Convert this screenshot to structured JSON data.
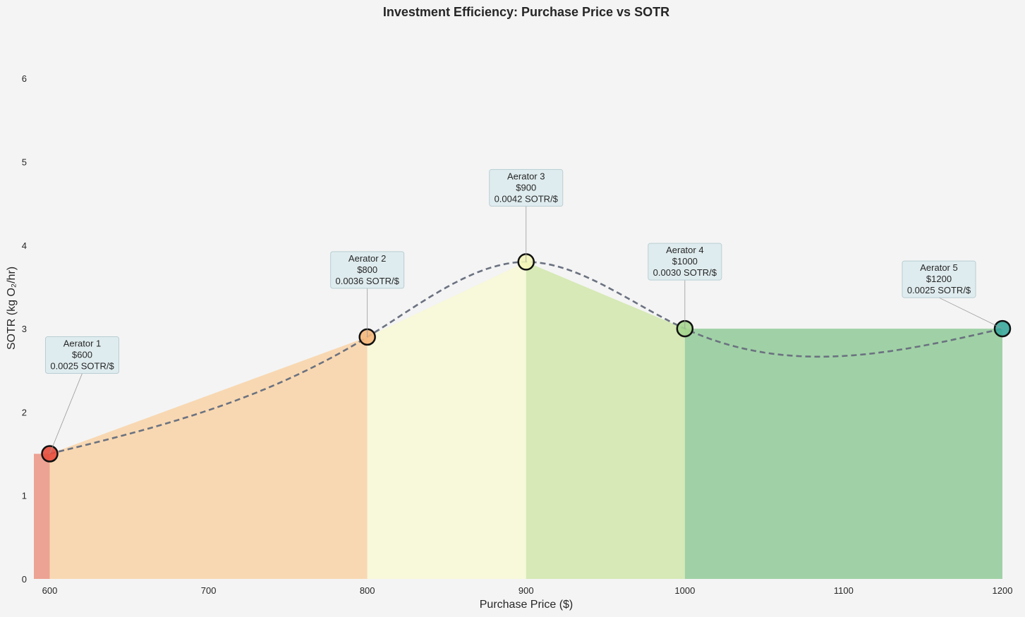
{
  "chart_data": {
    "type": "area",
    "title": "Investment Efficiency: Purchase Price vs SOTR",
    "xlabel": "Purchase Price ($)",
    "ylabel": "SOTR (kg O₂/hr)",
    "xlim": [
      590,
      1200
    ],
    "ylim": [
      0,
      6.5
    ],
    "xticks": [
      600,
      700,
      800,
      900,
      1000,
      1100,
      1200
    ],
    "yticks": [
      0,
      1,
      2,
      3,
      4,
      5,
      6
    ],
    "grid": false,
    "points": [
      {
        "name": "Aerator 1",
        "price": 600,
        "sotr": 1.5,
        "label_price": "$600",
        "label_eff": "0.0025 SOTR/$",
        "color": "#e74c3c",
        "fill": "#eca393"
      },
      {
        "name": "Aerator 2",
        "price": 800,
        "sotr": 2.9,
        "label_price": "$800",
        "label_eff": "0.0036 SOTR/$",
        "color": "#f5b77a",
        "fill": "#f8d8b2"
      },
      {
        "name": "Aerator 3",
        "price": 900,
        "sotr": 3.8,
        "label_price": "$900",
        "label_eff": "0.0042 SOTR/$",
        "color": "#f3f5b8",
        "fill": "#f8f8da"
      },
      {
        "name": "Aerator 4",
        "price": 1000,
        "sotr": 3.0,
        "label_price": "$1000",
        "label_eff": "0.0030 SOTR/$",
        "color": "#a6d68e",
        "fill": "#d6e9b6"
      },
      {
        "name": "Aerator 5",
        "price": 1200,
        "sotr": 3.0,
        "label_price": "$1200",
        "label_eff": "0.0025 SOTR/$",
        "color": "#3aa89c",
        "fill": "#a0d1a6"
      }
    ],
    "trend_line": {
      "style": "dashed",
      "color": "#6b7280"
    },
    "annotation_box_color": "#dfecef"
  }
}
